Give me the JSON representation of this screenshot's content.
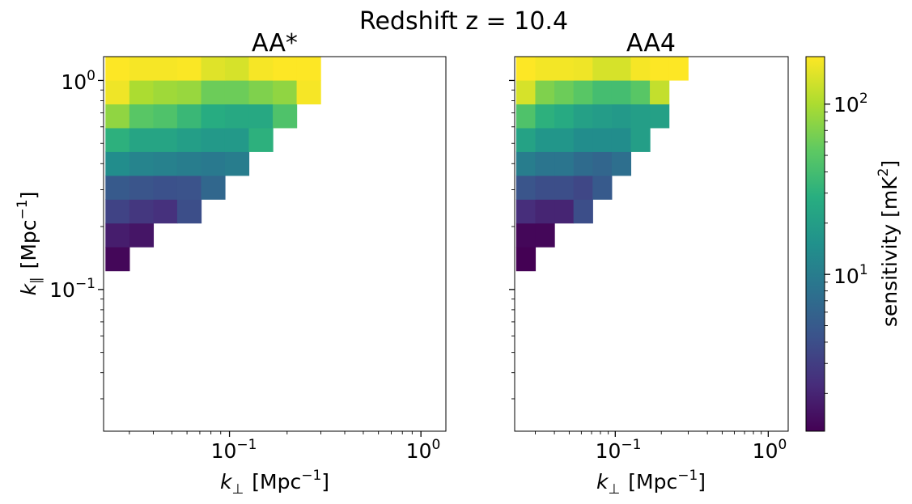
{
  "figure": {
    "title": "Redshift z = 10.4"
  },
  "chart_data": {
    "type": "heatmap",
    "scale": "log",
    "x_axis": {
      "label_symbol": "k",
      "label_sub": "⊥",
      "label_unit": "[Mpc",
      "label_exp": "−1",
      "label_close": "]",
      "scale": "log",
      "lim": [
        0.022,
        1.35
      ],
      "ticks": [
        {
          "base": "10",
          "exp": "−1",
          "value": 0.1
        },
        {
          "base": "10",
          "exp": "0",
          "value": 1
        }
      ]
    },
    "y_axis": {
      "label_symbol": "k",
      "label_sub": "∥",
      "label_unit": "[Mpc",
      "label_exp": "−1",
      "label_close": "]",
      "scale": "log",
      "lim": [
        0.021,
        1.3
      ],
      "ticks": [
        {
          "base": "10",
          "exp": "−1",
          "value": 0.1
        },
        {
          "base": "10",
          "exp": "0",
          "value": 1
        }
      ]
    },
    "colorbar": {
      "label_text": "sensitivity [mK",
      "label_exp": "2",
      "label_close": "]",
      "scale": "log",
      "range": [
        1.2,
        190
      ],
      "colormap": "viridis",
      "ticks": [
        {
          "base": "10",
          "exp": "1",
          "value": 10
        },
        {
          "base": "10",
          "exp": "2",
          "value": 100
        }
      ]
    },
    "bins": {
      "k_perp_edges": [
        0.0225,
        0.03,
        0.04,
        0.0533,
        0.0711,
        0.0947,
        0.1262,
        0.1683,
        0.2243,
        0.299
      ],
      "k_par_edges": [
        0.123,
        0.16,
        0.208,
        0.2704,
        0.3515,
        0.457,
        0.5941,
        0.7723,
        1.004,
        1.3052
      ]
    },
    "panels": [
      {
        "title": "AA*",
        "values": [
          [
            1.3
          ],
          [
            1.8,
            1.6
          ],
          [
            3.3,
            2.7,
            2.4,
            4.0
          ],
          [
            5.0,
            4.5,
            4.2,
            4.3,
            6.5
          ],
          [
            14,
            11.5,
            11,
            10,
            9.3,
            10
          ],
          [
            30,
            23,
            23,
            20,
            18,
            18,
            30
          ],
          [
            80,
            50,
            45,
            35,
            27,
            25,
            25,
            45
          ],
          [
            170,
            100,
            90,
            85,
            60,
            60,
            70,
            80,
            180
          ],
          [
            190,
            180,
            180,
            185,
            150,
            140,
            180,
            190,
            190
          ]
        ]
      },
      {
        "title": "AA4",
        "values": [
          [
            1.2
          ],
          [
            1.3,
            1.3
          ],
          [
            2.3,
            2.0,
            2.0,
            4.0
          ],
          [
            4.5,
            4.0,
            4.0,
            3.5,
            5.0
          ],
          [
            10,
            8.5,
            8.5,
            7.0,
            6.3,
            7.5
          ],
          [
            22,
            17,
            17,
            14,
            14,
            14,
            20
          ],
          [
            45,
            30,
            26,
            21,
            19,
            18,
            20,
            21
          ],
          [
            140,
            70,
            60,
            50,
            40,
            40,
            50,
            120
          ],
          [
            190,
            175,
            175,
            170,
            140,
            140,
            180,
            190,
            190
          ]
        ]
      }
    ]
  }
}
